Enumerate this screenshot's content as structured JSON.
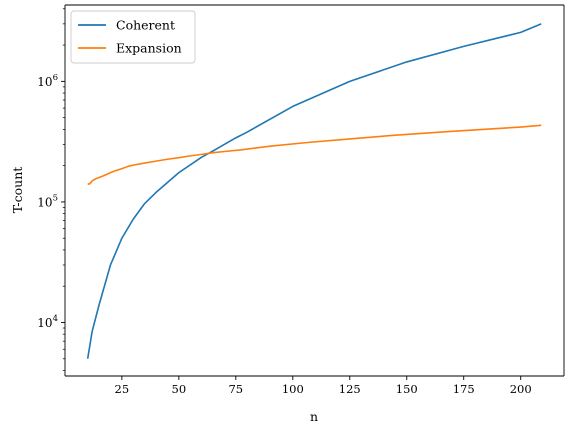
{
  "chart_data": {
    "type": "line",
    "title": "",
    "xlabel": "n",
    "ylabel": "T-count",
    "xlim": [
      0.05,
      219
    ],
    "ylim": [
      3600,
      4300000
    ],
    "y_scale": "log",
    "x_ticks": [
      25,
      50,
      75,
      100,
      125,
      150,
      175,
      200
    ],
    "x_tick_labels": [
      "25",
      "50",
      "75",
      "100",
      "125",
      "150",
      "175",
      "200"
    ],
    "y_ticks": [
      10000,
      100000,
      1000000
    ],
    "y_tick_labels": [
      {
        "base": "10",
        "exp": "4"
      },
      {
        "base": "10",
        "exp": "5"
      },
      {
        "base": "10",
        "exp": "6"
      }
    ],
    "grid": false,
    "legend_position": "top-left",
    "series": [
      {
        "name": "Coherent",
        "color": "#1f77b4",
        "x": [
          10,
          12,
          15,
          20,
          25,
          30,
          35,
          40,
          50,
          60,
          65,
          75,
          80,
          100,
          125,
          150,
          175,
          200,
          209
        ],
        "y": [
          5000,
          8500,
          14000,
          30000,
          50000,
          72000,
          97000,
          120000,
          175000,
          235000,
          265000,
          340000,
          380000,
          620000,
          1000000,
          1450000,
          1950000,
          2550000,
          3000000
        ]
      },
      {
        "name": "Expansion",
        "color": "#ff7f0e",
        "x": [
          10,
          11,
          12,
          14,
          16,
          18,
          20,
          22,
          25,
          28,
          30,
          35,
          40,
          45,
          50,
          55,
          60,
          65,
          70,
          77,
          90,
          107,
          125,
          145,
          170,
          200,
          209
        ],
        "y": [
          140000,
          142000,
          150000,
          157000,
          162000,
          168000,
          175000,
          181000,
          189000,
          198000,
          202000,
          210000,
          218000,
          226000,
          233000,
          241000,
          248000,
          256000,
          262000,
          270000,
          290000,
          312000,
          333000,
          358000,
          385000,
          418000,
          432000
        ]
      }
    ]
  }
}
